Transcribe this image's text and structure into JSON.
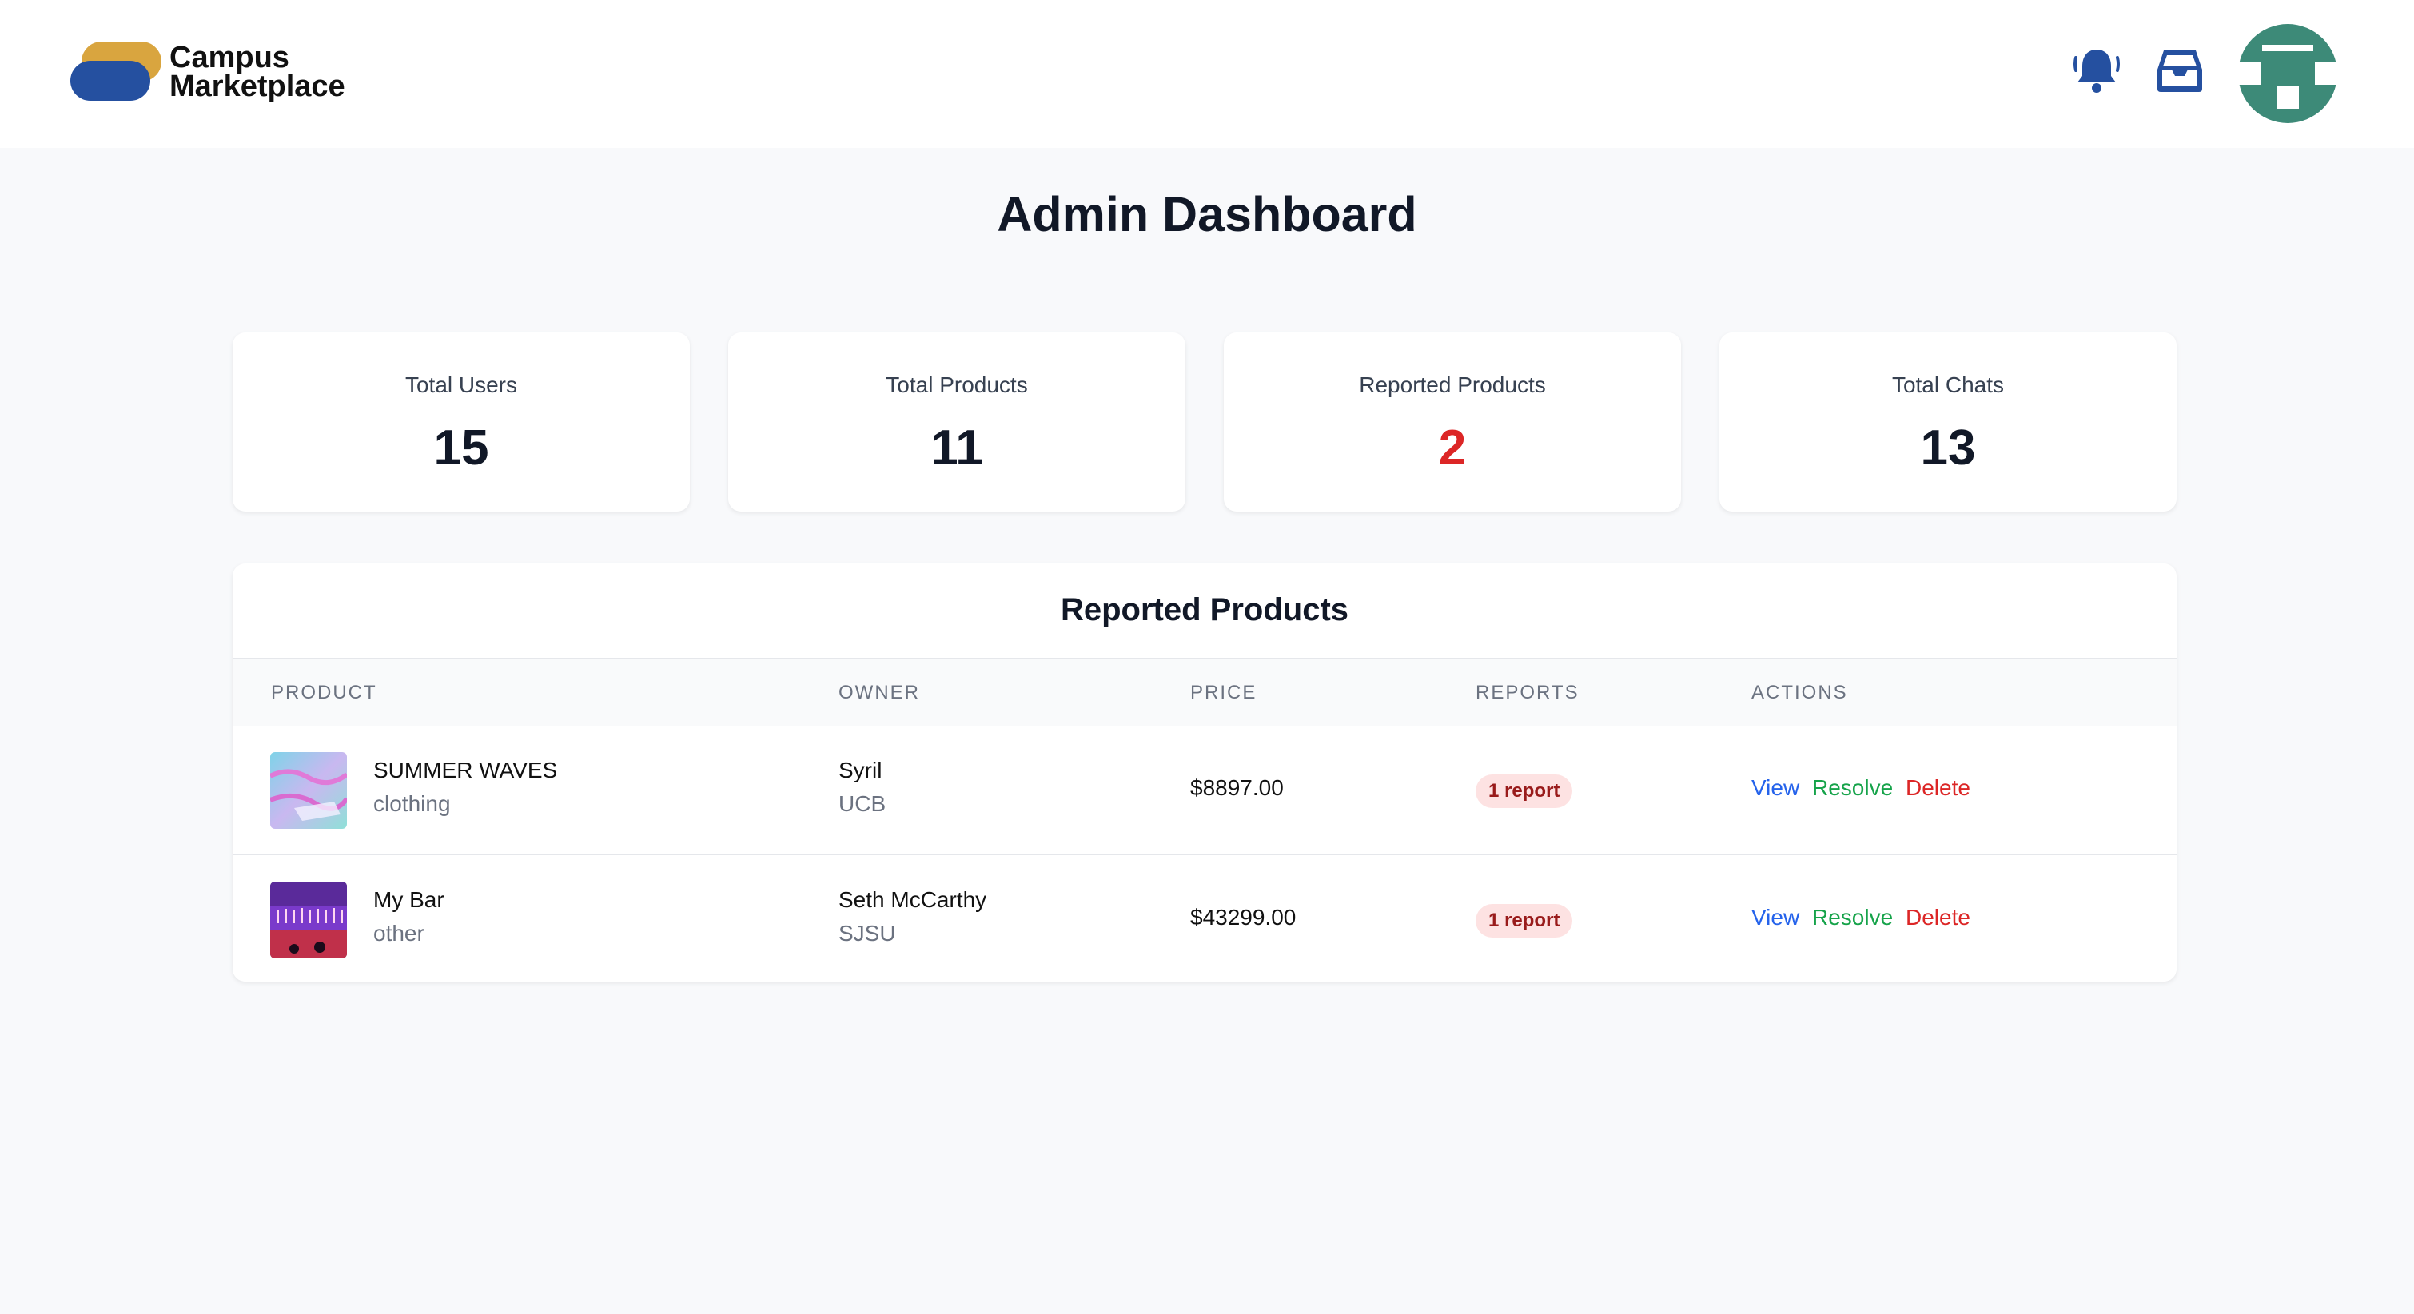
{
  "app": {
    "brand_line1": "Campus",
    "brand_line2": "Marketplace"
  },
  "header_icons": [
    "bell-icon",
    "inbox-icon",
    "avatar"
  ],
  "page": {
    "title": "Admin Dashboard"
  },
  "stats": [
    {
      "label": "Total Users",
      "value": "15"
    },
    {
      "label": "Total Products",
      "value": "11"
    },
    {
      "label": "Reported Products",
      "value": "2",
      "color": "#dc2626"
    },
    {
      "label": "Total Chats",
      "value": "13"
    }
  ],
  "reported": {
    "title": "Reported Products",
    "columns": [
      "PRODUCT",
      "OWNER",
      "PRICE",
      "REPORTS",
      "ACTIONS"
    ],
    "rows": [
      {
        "product": "SUMMER WAVES",
        "category": "clothing",
        "owner": "Syril",
        "school": "UCB",
        "price": "$8897.00",
        "reports": "1 report",
        "actions": [
          "View",
          "Resolve",
          "Delete"
        ]
      },
      {
        "product": "My Bar",
        "category": "other",
        "owner": "Seth McCarthy",
        "school": "SJSU",
        "price": "$43299.00",
        "reports": "1 report",
        "actions": [
          "View",
          "Resolve",
          "Delete"
        ]
      }
    ]
  },
  "colors": {
    "brand_blue": "#2550a0",
    "brand_gold": "#d9a53f",
    "avatar_green": "#3d8a78",
    "danger": "#dc2626",
    "success": "#16a34a",
    "link": "#2563eb"
  }
}
